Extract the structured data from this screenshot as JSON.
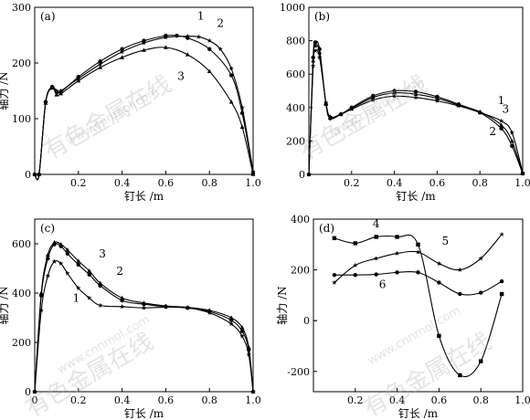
{
  "watermark": {
    "text": "有色金属在线",
    "url": "www.cnnmol.com"
  },
  "chart_data": [
    {
      "id": "a",
      "type": "line",
      "panel_label": "(a)",
      "xlabel": "钉长 /m",
      "ylabel": "轴力 /N",
      "xlim": [
        0,
        1.0
      ],
      "ylim": [
        0,
        300
      ],
      "x_ticks": [
        0.2,
        0.4,
        0.6,
        0.8,
        1.0
      ],
      "x_tick_labels": [
        "0.2",
        "0.4",
        "0.6",
        "0.8",
        "1.0"
      ],
      "y_ticks": [
        0,
        100,
        200,
        300
      ],
      "y_tick_labels": [
        "0",
        "100",
        "200",
        "300"
      ],
      "series": [
        {
          "name": "1",
          "marker": "star",
          "x": [
            0,
            0.02,
            0.05,
            0.08,
            0.1,
            0.12,
            0.2,
            0.3,
            0.4,
            0.5,
            0.6,
            0.7,
            0.75,
            0.8,
            0.85,
            0.9,
            0.95,
            1.0
          ],
          "y": [
            0,
            0,
            130,
            157,
            150,
            150,
            172,
            198,
            220,
            236,
            246,
            248,
            247,
            240,
            225,
            190,
            120,
            5
          ]
        },
        {
          "name": "2",
          "marker": "circle",
          "x": [
            0,
            0.02,
            0.05,
            0.08,
            0.1,
            0.12,
            0.2,
            0.3,
            0.4,
            0.5,
            0.6,
            0.65,
            0.7,
            0.8,
            0.9,
            0.95,
            1.0
          ],
          "y": [
            0,
            0,
            130,
            157,
            148,
            148,
            175,
            203,
            225,
            240,
            249,
            249,
            245,
            225,
            178,
            110,
            2
          ]
        },
        {
          "name": "3",
          "marker": "triangle",
          "x": [
            0,
            0.02,
            0.05,
            0.08,
            0.1,
            0.12,
            0.2,
            0.3,
            0.4,
            0.5,
            0.6,
            0.7,
            0.8,
            0.9,
            0.95,
            1.0
          ],
          "y": [
            0,
            0,
            128,
            155,
            143,
            145,
            168,
            192,
            210,
            223,
            228,
            215,
            185,
            130,
            85,
            0
          ]
        }
      ],
      "curve_labels": [
        {
          "text": "1",
          "x": 0.76,
          "y": 278
        },
        {
          "text": "2",
          "x": 0.85,
          "y": 265
        },
        {
          "text": "3",
          "x": 0.67,
          "y": 170
        }
      ]
    },
    {
      "id": "b",
      "type": "line",
      "panel_label": "(b)",
      "xlabel": "钉长 /m",
      "ylabel": "",
      "xlim": [
        0,
        1.0
      ],
      "ylim": [
        0,
        1000
      ],
      "x_ticks": [
        0.2,
        0.4,
        0.6,
        0.8,
        1.0
      ],
      "x_tick_labels": [
        "0.2",
        "0.4",
        "0.6",
        "0.8",
        "1.0"
      ],
      "y_ticks": [
        0,
        200,
        400,
        600,
        800,
        1000
      ],
      "y_tick_labels": [
        "0",
        "200",
        "400",
        "600",
        "800",
        "1000"
      ],
      "series": [
        {
          "name": "1",
          "marker": "star",
          "x": [
            0,
            0.02,
            0.03,
            0.05,
            0.08,
            0.1,
            0.15,
            0.2,
            0.3,
            0.4,
            0.5,
            0.6,
            0.7,
            0.8,
            0.9,
            0.95,
            1.0
          ],
          "y": [
            0,
            650,
            740,
            700,
            430,
            345,
            360,
            390,
            445,
            468,
            460,
            440,
            410,
            370,
            320,
            250,
            10
          ]
        },
        {
          "name": "2",
          "marker": "circle",
          "x": [
            0,
            0.02,
            0.03,
            0.05,
            0.08,
            0.1,
            0.15,
            0.2,
            0.3,
            0.4,
            0.5,
            0.6,
            0.7,
            0.8,
            0.9,
            0.95,
            1.0
          ],
          "y": [
            0,
            700,
            790,
            750,
            420,
            335,
            360,
            400,
            470,
            500,
            495,
            465,
            420,
            370,
            275,
            170,
            5
          ]
        },
        {
          "name": "3",
          "marker": "triangle",
          "x": [
            0,
            0.02,
            0.03,
            0.05,
            0.08,
            0.1,
            0.15,
            0.2,
            0.3,
            0.4,
            0.5,
            0.6,
            0.7,
            0.8,
            0.9,
            0.95,
            1.0
          ],
          "y": [
            0,
            680,
            770,
            730,
            420,
            340,
            362,
            395,
            460,
            488,
            480,
            455,
            415,
            375,
            295,
            200,
            5
          ]
        }
      ],
      "curve_labels": [
        {
          "text": "1",
          "x": 0.9,
          "y": 420
        },
        {
          "text": "3",
          "x": 0.92,
          "y": 370
        },
        {
          "text": "2",
          "x": 0.86,
          "y": 235
        }
      ]
    },
    {
      "id": "c",
      "type": "line",
      "panel_label": "(c)",
      "xlabel": "钉长 /m",
      "ylabel": "轴力 /N",
      "xlim": [
        0,
        1.0
      ],
      "ylim": [
        0,
        700
      ],
      "x_ticks": [
        0,
        0.2,
        0.4,
        0.6,
        0.8,
        1.0
      ],
      "x_tick_labels": [
        "0",
        "0.2",
        "0.4",
        "0.6",
        "0.8",
        "1.0"
      ],
      "y_ticks": [
        0,
        200,
        400,
        600
      ],
      "y_tick_labels": [
        "0",
        "200",
        "400",
        "600"
      ],
      "series": [
        {
          "name": "1",
          "marker": "star",
          "x": [
            0,
            0.03,
            0.06,
            0.09,
            0.12,
            0.15,
            0.2,
            0.25,
            0.3,
            0.4,
            0.5,
            0.6,
            0.7,
            0.8,
            0.9,
            0.95,
            0.98,
            1.0
          ],
          "y": [
            0,
            330,
            470,
            528,
            520,
            480,
            420,
            380,
            350,
            345,
            340,
            343,
            340,
            320,
            275,
            225,
            150,
            0
          ]
        },
        {
          "name": "2",
          "marker": "circle",
          "x": [
            0,
            0.03,
            0.06,
            0.09,
            0.12,
            0.15,
            0.2,
            0.25,
            0.3,
            0.4,
            0.5,
            0.6,
            0.7,
            0.8,
            0.9,
            0.95,
            0.98,
            1.0
          ],
          "y": [
            0,
            390,
            540,
            598,
            590,
            560,
            515,
            475,
            430,
            370,
            355,
            345,
            340,
            325,
            290,
            245,
            170,
            0
          ]
        },
        {
          "name": "3",
          "marker": "triangle",
          "x": [
            0,
            0.03,
            0.06,
            0.09,
            0.12,
            0.15,
            0.2,
            0.25,
            0.3,
            0.4,
            0.5,
            0.6,
            0.7,
            0.8,
            0.9,
            0.95,
            0.98,
            1.0
          ],
          "y": [
            0,
            400,
            555,
            605,
            598,
            575,
            530,
            490,
            440,
            380,
            360,
            348,
            342,
            330,
            300,
            260,
            180,
            0
          ]
        }
      ],
      "curve_labels": [
        {
          "text": "3",
          "x": 0.31,
          "y": 545
        },
        {
          "text": "2",
          "x": 0.39,
          "y": 475
        },
        {
          "text": "1",
          "x": 0.19,
          "y": 365
        }
      ]
    },
    {
      "id": "d",
      "type": "line",
      "panel_label": "(d)",
      "xlabel": "钉长 /m",
      "ylabel": "轴力 /N",
      "xlim": [
        0,
        1.0
      ],
      "ylim": [
        -280,
        400
      ],
      "x_ticks": [
        0.2,
        0.4,
        0.6,
        0.8,
        1.0
      ],
      "x_tick_labels": [
        "0.2",
        "0.4",
        "0.6",
        "0.8",
        "1.0"
      ],
      "y_ticks": [
        -200,
        0,
        200,
        400
      ],
      "y_tick_labels": [
        "-200",
        "0",
        "200",
        "400"
      ],
      "series": [
        {
          "name": "4",
          "marker": "square",
          "x": [
            0.1,
            0.2,
            0.3,
            0.4,
            0.5,
            0.6,
            0.7,
            0.8,
            0.9
          ],
          "y": [
            325,
            305,
            330,
            330,
            300,
            -60,
            -215,
            -160,
            105
          ]
        },
        {
          "name": "5",
          "marker": "star",
          "x": [
            0.1,
            0.2,
            0.3,
            0.4,
            0.5,
            0.6,
            0.7,
            0.8,
            0.9
          ],
          "y": [
            150,
            218,
            245,
            265,
            270,
            225,
            200,
            245,
            340
          ]
        },
        {
          "name": "6",
          "marker": "circle",
          "x": [
            0.1,
            0.2,
            0.3,
            0.4,
            0.5,
            0.6,
            0.7,
            0.8,
            0.9
          ],
          "y": [
            180,
            180,
            182,
            190,
            190,
            150,
            105,
            110,
            155
          ]
        }
      ],
      "curve_labels": [
        {
          "text": "4",
          "x": 0.3,
          "y": 368
        },
        {
          "text": "5",
          "x": 0.63,
          "y": 300
        },
        {
          "text": "6",
          "x": 0.33,
          "y": 128
        }
      ]
    }
  ]
}
